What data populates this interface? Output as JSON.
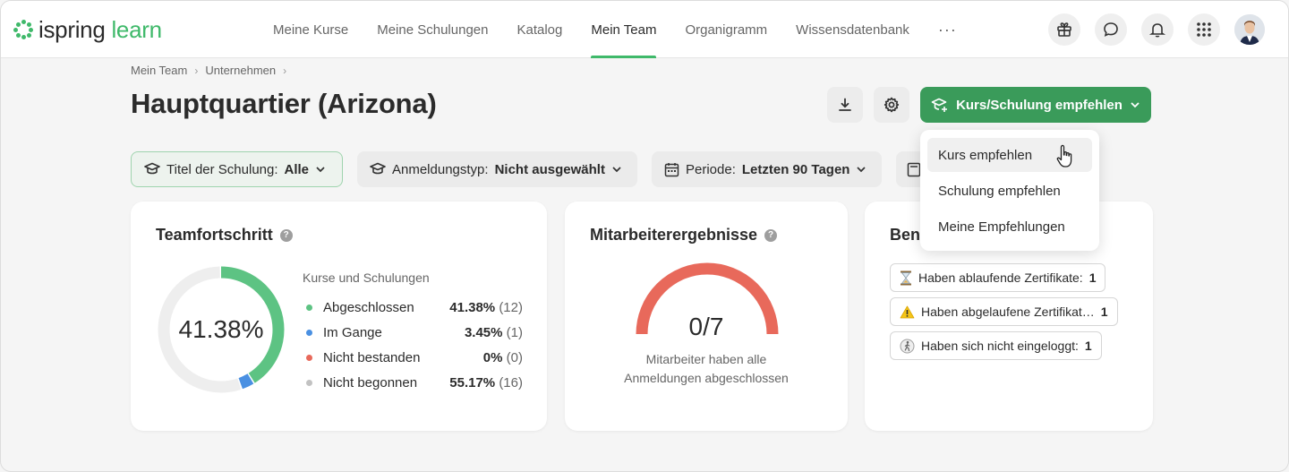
{
  "app": {
    "logo_part1": "ispring",
    "logo_part2": "learn"
  },
  "nav": {
    "items": [
      {
        "label": "Meine Kurse",
        "active": false
      },
      {
        "label": "Meine Schulungen",
        "active": false
      },
      {
        "label": "Katalog",
        "active": false
      },
      {
        "label": "Mein Team",
        "active": true
      },
      {
        "label": "Organigramm",
        "active": false
      },
      {
        "label": "Wissensdatenbank",
        "active": false
      }
    ],
    "more": "···",
    "icons": [
      "gift-icon",
      "chat-icon",
      "bell-icon",
      "apps-grid-icon"
    ]
  },
  "breadcrumb": [
    "Mein Team",
    "Unternehmen"
  ],
  "page": {
    "title": "Hauptquartier (Arizona)"
  },
  "actions": {
    "download_icon": "download-icon",
    "settings_icon": "gear-icon",
    "recommend_label": "Kurs/Schulung empfehlen"
  },
  "filters": [
    {
      "label": "Titel der Schulung:",
      "value": "Alle",
      "icon": "graduation-cap-icon"
    },
    {
      "label": "Anmeldungstyp:",
      "value": "Nicht ausgewählt",
      "icon": "graduation-cap-icon"
    },
    {
      "label": "Periode:",
      "value": "Letzten 90 Tagen",
      "icon": "calendar-icon"
    }
  ],
  "team_progress": {
    "title": "Teamfortschritt",
    "center_value": "41.38%",
    "legend_head": "Kurse und Schulungen",
    "items": [
      {
        "label": "Abgeschlossen",
        "percent": "41.38%",
        "count": "(12)",
        "color": "#5dc383",
        "fraction": 0.4138
      },
      {
        "label": "Im Gange",
        "percent": "3.45%",
        "count": "(1)",
        "color": "#4a90e2",
        "fraction": 0.0345
      },
      {
        "label": "Nicht bestanden",
        "percent": "0%",
        "count": "(0)",
        "color": "#e8695b",
        "fraction": 0
      },
      {
        "label": "Nicht begonnen",
        "percent": "55.17%",
        "count": "(16)",
        "color": "#c2c2c2",
        "fraction": 0.5517
      }
    ]
  },
  "employee_results": {
    "title": "Mitarbeiterergebnisse",
    "value": "0/7",
    "caption_line1": "Mitarbeiter haben alle",
    "caption_line2": "Anmeldungen abgeschlossen",
    "gauge_color": "#e8695b"
  },
  "notifications": {
    "title": "Benu",
    "items": [
      {
        "icon": "hourglass-icon",
        "label": "Haben ablaufende Zertifikate:",
        "count": "1"
      },
      {
        "icon": "warning-icon",
        "label": "Haben abgelaufene Zertifikat…",
        "count": "1"
      },
      {
        "icon": "walking-person-icon",
        "label": "Haben sich nicht eingeloggt:",
        "count": "1"
      }
    ]
  },
  "dropdown": {
    "items": [
      "Kurs empfehlen",
      "Schulung empfehlen",
      "Meine Empfehlungen"
    ]
  },
  "colors": {
    "accent": "#3fb96a",
    "primary_button": "#3a9b5a"
  }
}
